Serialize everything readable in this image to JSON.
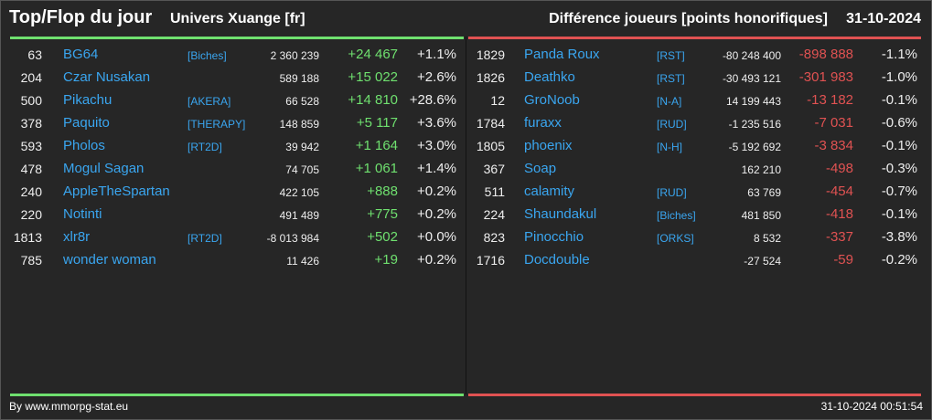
{
  "header": {
    "title": "Top/Flop du jour",
    "universe": "Univers Xuange [fr]",
    "metric": "Différence joueurs [points honorifiques]",
    "date": "31-10-2024"
  },
  "colors": {
    "positive": "#6fe06f",
    "negative": "#e05252",
    "link": "#3aa6f0"
  },
  "top": [
    {
      "rank": "63",
      "name": "BG64",
      "guild": "[Biches]",
      "points": "2 360 239",
      "diff": "+24 467",
      "pct": "+1.1%"
    },
    {
      "rank": "204",
      "name": "Czar Nusakan",
      "guild": "",
      "points": "589 188",
      "diff": "+15 022",
      "pct": "+2.6%"
    },
    {
      "rank": "500",
      "name": "Pikachu",
      "guild": "[AKERA]",
      "points": "66 528",
      "diff": "+14 810",
      "pct": "+28.6%"
    },
    {
      "rank": "378",
      "name": "Paquito",
      "guild": "[THERAPY]",
      "points": "148 859",
      "diff": "+5 117",
      "pct": "+3.6%"
    },
    {
      "rank": "593",
      "name": "Pholos",
      "guild": "[RT2D]",
      "points": "39 942",
      "diff": "+1 164",
      "pct": "+3.0%"
    },
    {
      "rank": "478",
      "name": "Mogul Sagan",
      "guild": "",
      "points": "74 705",
      "diff": "+1 061",
      "pct": "+1.4%"
    },
    {
      "rank": "240",
      "name": "AppleTheSpartan",
      "guild": "",
      "points": "422 105",
      "diff": "+888",
      "pct": "+0.2%"
    },
    {
      "rank": "220",
      "name": "Notinti",
      "guild": "",
      "points": "491 489",
      "diff": "+775",
      "pct": "+0.2%"
    },
    {
      "rank": "1813",
      "name": "xlr8r",
      "guild": "[RT2D]",
      "points": "-8 013 984",
      "diff": "+502",
      "pct": "+0.0%"
    },
    {
      "rank": "785",
      "name": "wonder woman",
      "guild": "",
      "points": "11 426",
      "diff": "+19",
      "pct": "+0.2%"
    }
  ],
  "flop": [
    {
      "rank": "1829",
      "name": "Panda Roux",
      "guild": "[RST]",
      "points": "-80 248 400",
      "diff": "-898 888",
      "pct": "-1.1%"
    },
    {
      "rank": "1826",
      "name": "Deathko",
      "guild": "[RST]",
      "points": "-30 493 121",
      "diff": "-301 983",
      "pct": "-1.0%"
    },
    {
      "rank": "12",
      "name": "GroNoob",
      "guild": "[N-A]",
      "points": "14 199 443",
      "diff": "-13 182",
      "pct": "-0.1%"
    },
    {
      "rank": "1784",
      "name": "furaxx",
      "guild": "[RUD]",
      "points": "-1 235 516",
      "diff": "-7 031",
      "pct": "-0.6%"
    },
    {
      "rank": "1805",
      "name": "phoenix",
      "guild": "[N-H]",
      "points": "-5 192 692",
      "diff": "-3 834",
      "pct": "-0.1%"
    },
    {
      "rank": "367",
      "name": "Soap",
      "guild": "",
      "points": "162 210",
      "diff": "-498",
      "pct": "-0.3%"
    },
    {
      "rank": "511",
      "name": "calamity",
      "guild": "[RUD]",
      "points": "63 769",
      "diff": "-454",
      "pct": "-0.7%"
    },
    {
      "rank": "224",
      "name": "Shaundakul",
      "guild": "[Biches]",
      "points": "481 850",
      "diff": "-418",
      "pct": "-0.1%"
    },
    {
      "rank": "823",
      "name": "Pinocchio",
      "guild": "[ORKS]",
      "points": "8 532",
      "diff": "-337",
      "pct": "-3.8%"
    },
    {
      "rank": "1716",
      "name": "Docdouble",
      "guild": "",
      "points": "-27 524",
      "diff": "-59",
      "pct": "-0.2%"
    }
  ],
  "footer": {
    "credit": "By www.mmorpg-stat.eu",
    "timestamp": "31-10-2024 00:51:54"
  }
}
